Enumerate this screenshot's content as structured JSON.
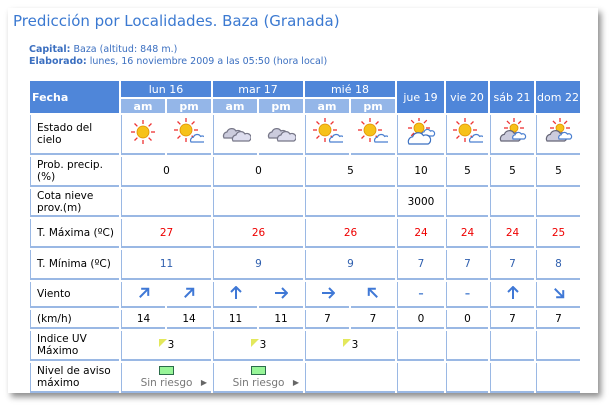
{
  "title": "Predicción por Localidades. Baza (Granada)",
  "capital_label": "Capital:",
  "capital_value": "Baza (altitud: 848 m.)",
  "elaborado_label": "Elaborado:",
  "elaborado_value": "lunes, 16 noviembre 2009 a las 05:50 (hora local)",
  "fecha_label": "Fecha",
  "days": [
    {
      "label": "lun 16",
      "split": true
    },
    {
      "label": "mar 17",
      "split": true
    },
    {
      "label": "mié 18",
      "split": true
    },
    {
      "label": "jue 19",
      "split": false
    },
    {
      "label": "vie 20",
      "split": false
    },
    {
      "label": "sáb 21",
      "split": false
    },
    {
      "label": "dom 22",
      "split": false
    }
  ],
  "am": "am",
  "pm": "pm",
  "rows": {
    "sky": {
      "label": "Estado del cielo",
      "icons": [
        "sunny",
        "sun-cloud",
        "cloudy",
        "cloudy",
        "sun-cloud",
        "sun-cloud",
        "partly-cloudy",
        "sun-cloud",
        "cloud-sun",
        "cloud-sun"
      ]
    },
    "prob": {
      "label": "Prob. precip.(%)",
      "values": [
        "0",
        "0",
        "5",
        "10",
        "5",
        "5",
        "5"
      ]
    },
    "cota": {
      "label": "Cota nieve prov.(m)",
      "values": [
        "",
        "",
        "",
        "3000",
        "",
        "",
        ""
      ]
    },
    "tmax": {
      "label": "T. Máxima (ºC)",
      "values": [
        "27",
        "26",
        "26",
        "24",
        "24",
        "24",
        "25"
      ]
    },
    "tmin": {
      "label": "T. Mínima (ºC)",
      "values": [
        "11",
        "9",
        "9",
        "7",
        "7",
        "7",
        "8"
      ]
    },
    "viento": {
      "label": "Viento",
      "dirs": [
        "NE",
        "NE",
        "N",
        "E",
        "E",
        "NW",
        "calm",
        "calm",
        "N",
        "SE"
      ]
    },
    "kmh": {
      "label": "(km/h)",
      "values": [
        "14",
        "14",
        "11",
        "11",
        "7",
        "7",
        "0",
        "0",
        "7",
        "7"
      ]
    },
    "uv": {
      "label": "Indice UV Máximo",
      "values": [
        "3",
        "3",
        "3",
        "",
        "",
        "",
        ""
      ]
    },
    "aviso": {
      "label": "Nivel de aviso máximo",
      "values": [
        "Sin riesgo",
        "Sin riesgo",
        "",
        "",
        "",
        "",
        ""
      ]
    }
  },
  "colors": {
    "accent": "#4f86d9",
    "tmax": "#e00000",
    "tmin": "#2f5fae",
    "aviso_green": "#98f598"
  }
}
